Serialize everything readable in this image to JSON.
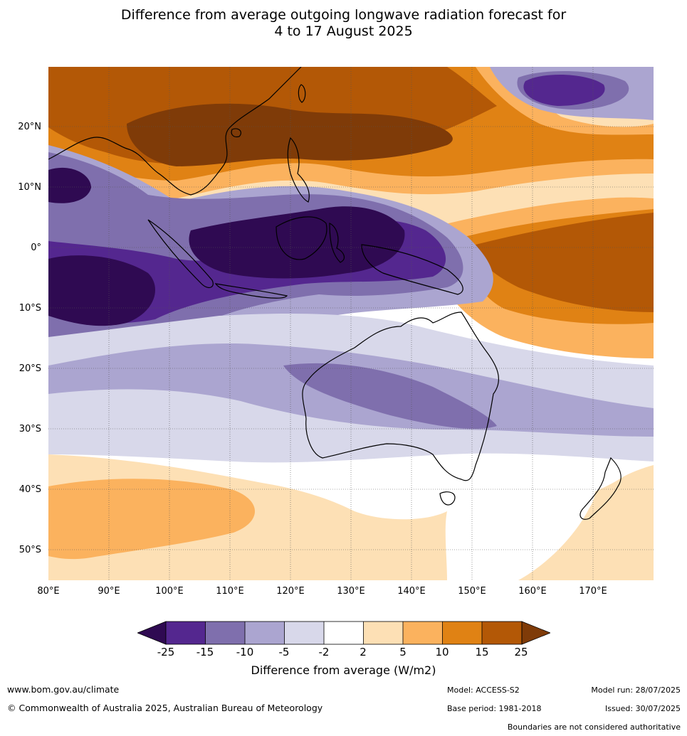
{
  "title": {
    "line1": "Difference from average outgoing longwave radiation forecast for",
    "line2": "4 to 17 August 2025"
  },
  "map": {
    "region": "Australia, Indonesia, western Pacific and eastern Indian Ocean",
    "lat_labels": [
      "20°N",
      "10°N",
      "0°",
      "10°S",
      "20°S",
      "30°S",
      "40°S",
      "50°S"
    ],
    "lon_labels": [
      "80°E",
      "90°E",
      "100°E",
      "110°E",
      "120°E",
      "130°E",
      "140°E",
      "150°E",
      "160°E",
      "170°E"
    ]
  },
  "colorbar": {
    "ticks": [
      "-25",
      "-15",
      "-10",
      "-5",
      "-2",
      "2",
      "5",
      "10",
      "15",
      "25"
    ],
    "colors": [
      "#2f0a52",
      "#54278f",
      "#7f6fad",
      "#aba5d0",
      "#d8d8ea",
      "#ffffff",
      "#fde0b5",
      "#fbb25e",
      "#e08214",
      "#b35806",
      "#7f3b08"
    ],
    "label": "Difference from average (W/m2)"
  },
  "footer": {
    "website": "www.bom.gov.au/climate",
    "copyright": "© Commonwealth of Australia 2025, Australian Bureau of Meteorology",
    "model": "Model: ACCESS-S2",
    "base_period": "Base period: 1981-2018",
    "model_run": "Model run: 28/07/2025",
    "issued": "Issued: 30/07/2025",
    "disclaimer": "Boundaries are not considered authoritative"
  }
}
